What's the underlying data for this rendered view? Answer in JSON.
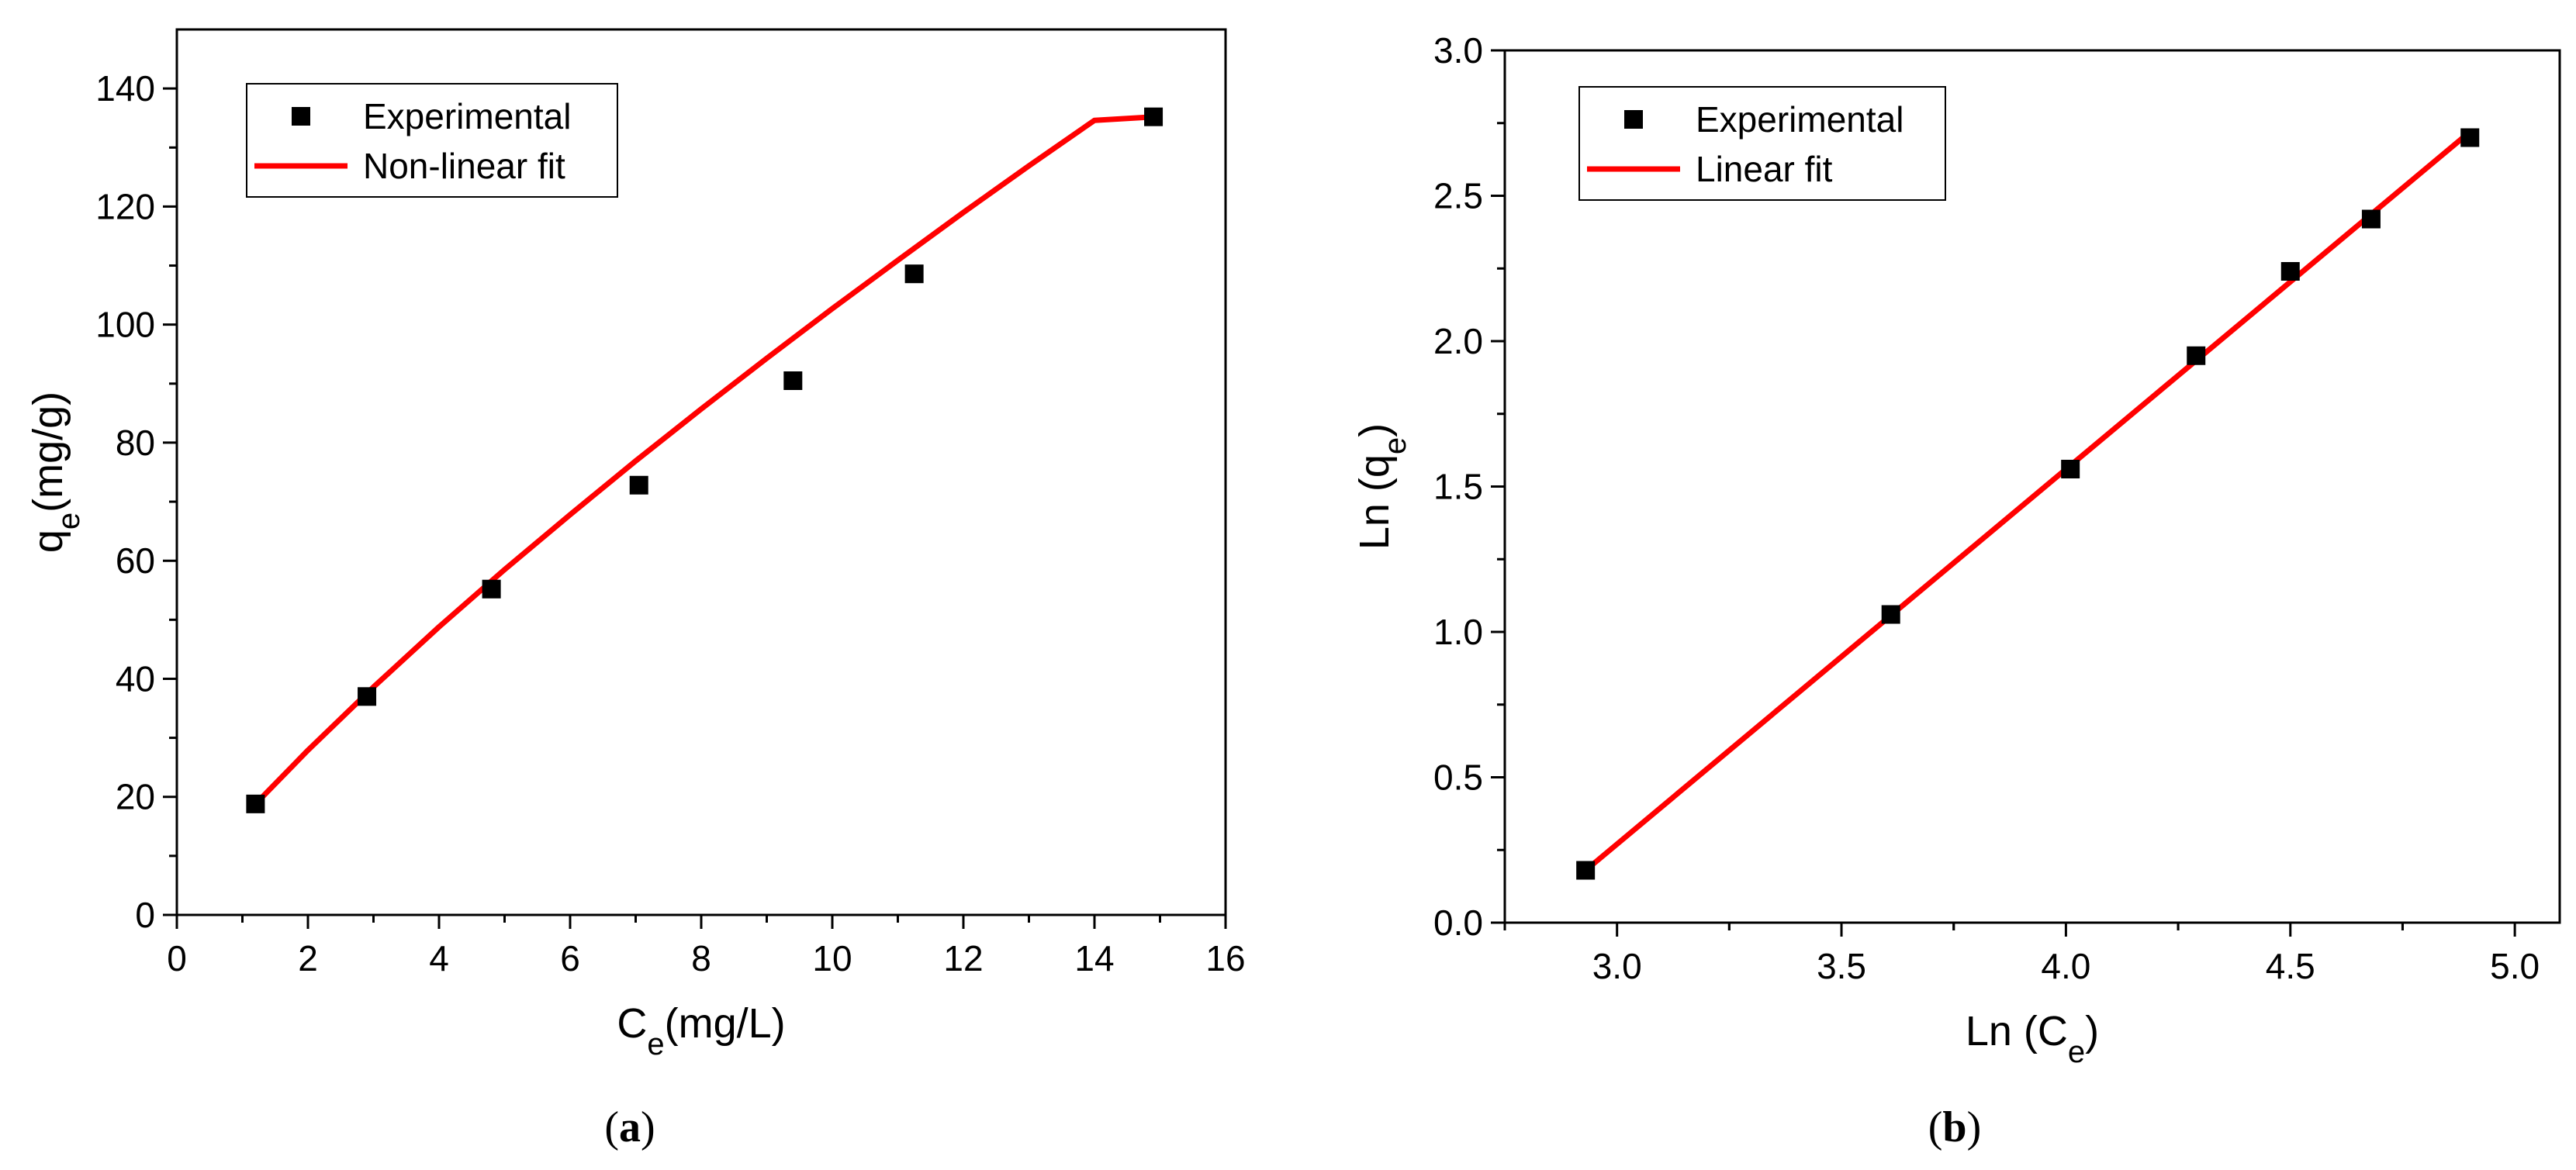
{
  "chart_data": [
    {
      "type": "scatter",
      "panel_label": "a",
      "xlabel": "C",
      "xlabel_sub": "e",
      "xlabel_rest": "(mg/L)",
      "ylabel": "q",
      "ylabel_sub": "e",
      "ylabel_rest": "(mg/g)",
      "xlim": [
        0,
        16
      ],
      "ylim": [
        0,
        150
      ],
      "xticks": [
        0,
        2,
        4,
        6,
        8,
        10,
        12,
        14,
        16
      ],
      "yticks": [
        0,
        20,
        40,
        60,
        80,
        100,
        120,
        140
      ],
      "legend_position": "top-left",
      "series": [
        {
          "name": "Experimental",
          "kind": "points",
          "color": "#000000",
          "x": [
            1.2,
            2.9,
            4.8,
            7.05,
            9.4,
            11.25,
            14.9
          ],
          "y": [
            18.8,
            37.0,
            55.2,
            72.8,
            90.5,
            108.6,
            135.2
          ]
        },
        {
          "name": "Non-linear fit",
          "kind": "line",
          "color": "#ff0000",
          "x": [
            1.2,
            2.0,
            3.0,
            4.0,
            5.0,
            6.0,
            7.0,
            8.0,
            9.0,
            10.0,
            11.0,
            12.0,
            13.0,
            14.0,
            14.9
          ],
          "y": [
            18.8,
            27.9,
            38.6,
            48.8,
            58.5,
            67.8,
            76.9,
            85.7,
            94.3,
            102.7,
            110.9,
            119.0,
            126.9,
            134.6,
            135.2
          ]
        }
      ]
    },
    {
      "type": "scatter",
      "panel_label": "b",
      "xlabel": "Ln (C",
      "xlabel_sub": "e",
      "xlabel_rest": ")",
      "ylabel": "Ln (q",
      "ylabel_sub": "e",
      "ylabel_rest": ")",
      "xlim": [
        2.75,
        5.1
      ],
      "ylim": [
        0.0,
        3.0
      ],
      "xticks": [
        "3.0",
        "3.5",
        "4.0",
        "4.5",
        "5.0"
      ],
      "yticks": [
        "0.0",
        "0.5",
        "1.0",
        "1.5",
        "2.0",
        "2.5",
        "3.0"
      ],
      "legend_position": "top-left",
      "series": [
        {
          "name": "Experimental",
          "kind": "points",
          "color": "#000000",
          "x": [
            2.93,
            3.61,
            4.01,
            4.29,
            4.5,
            4.68,
            4.9
          ],
          "y": [
            0.18,
            1.06,
            1.56,
            1.95,
            2.24,
            2.42,
            2.7
          ]
        },
        {
          "name": "Linear fit",
          "kind": "line",
          "color": "#ff0000",
          "x": [
            2.93,
            4.9
          ],
          "y": [
            0.18,
            2.72
          ]
        }
      ]
    }
  ]
}
